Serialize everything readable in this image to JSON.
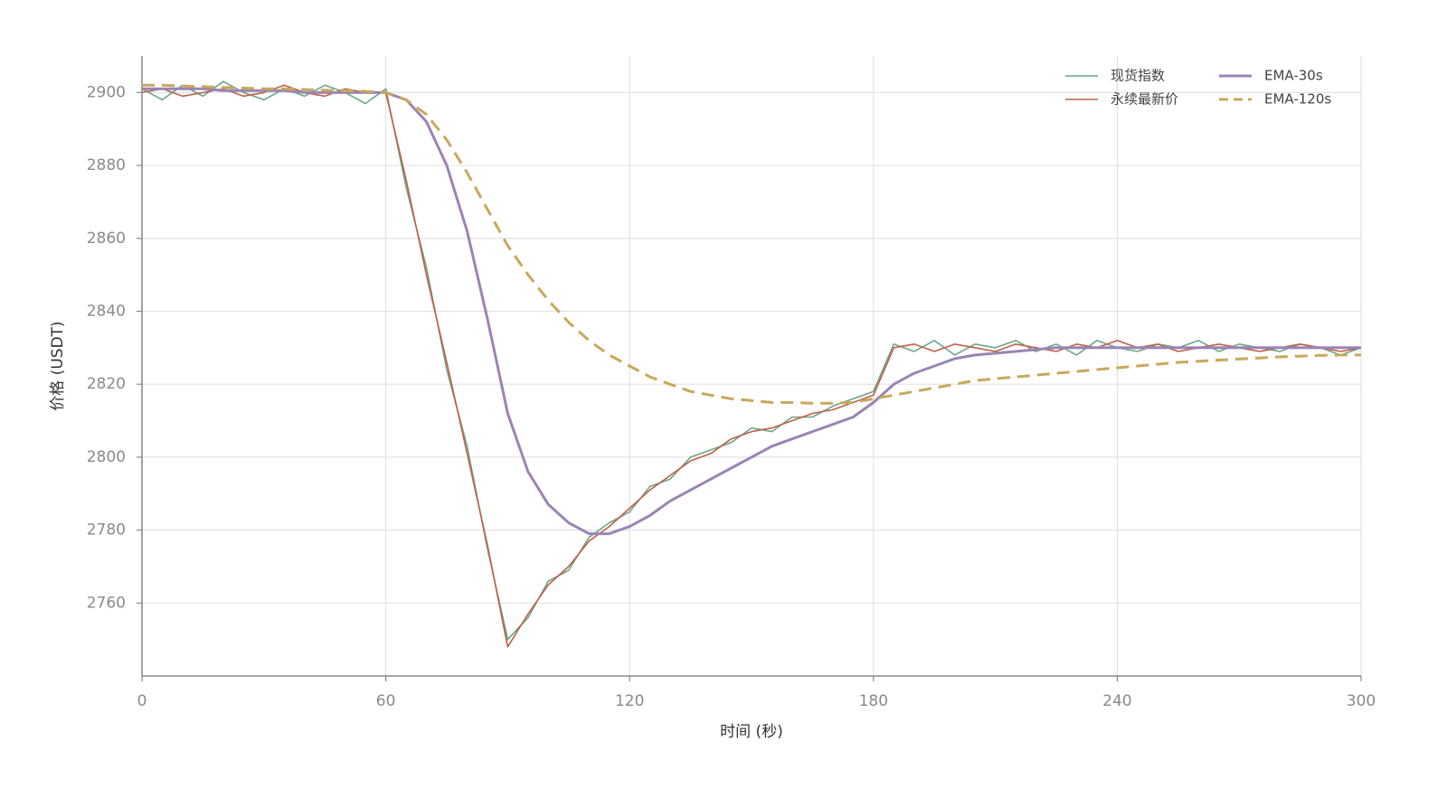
{
  "chart_data": {
    "type": "line",
    "xlabel": "时间 (秒)",
    "ylabel": "价格 (USDT)",
    "x": [
      0,
      5,
      10,
      15,
      20,
      25,
      30,
      35,
      40,
      45,
      50,
      55,
      60,
      65,
      70,
      75,
      80,
      85,
      90,
      95,
      100,
      105,
      110,
      115,
      120,
      125,
      130,
      135,
      140,
      145,
      150,
      155,
      160,
      165,
      170,
      175,
      180,
      185,
      190,
      195,
      200,
      205,
      210,
      215,
      220,
      225,
      230,
      235,
      240,
      245,
      250,
      255,
      260,
      265,
      270,
      275,
      280,
      285,
      290,
      295,
      300
    ],
    "series": [
      {
        "name": "现货指数",
        "color": "#6aa786",
        "linestyle": "solid",
        "linewidth": 1.6,
        "values": [
          2901,
          2898,
          2902,
          2899,
          2903,
          2900,
          2898,
          2901,
          2899,
          2902,
          2900,
          2897,
          2901,
          2874,
          2852,
          2824,
          2803,
          2775,
          2750,
          2756,
          2766,
          2769,
          2778,
          2782,
          2785,
          2792,
          2794,
          2800,
          2802,
          2804,
          2808,
          2807,
          2811,
          2811,
          2814,
          2816,
          2818,
          2831,
          2829,
          2832,
          2828,
          2831,
          2830,
          2832,
          2829,
          2831,
          2828,
          2832,
          2830,
          2829,
          2831,
          2830,
          2832,
          2829,
          2831,
          2830,
          2829,
          2831,
          2830,
          2828,
          2830
        ]
      },
      {
        "name": "永续最新价",
        "color": "#c0604a",
        "linestyle": "solid",
        "linewidth": 1.6,
        "values": [
          2900,
          2901,
          2899,
          2900,
          2901,
          2899,
          2900,
          2902,
          2900,
          2899,
          2901,
          2900,
          2900,
          2876,
          2850,
          2826,
          2801,
          2776,
          2748,
          2757,
          2765,
          2770,
          2777,
          2781,
          2786,
          2791,
          2795,
          2799,
          2801,
          2805,
          2807,
          2808,
          2810,
          2812,
          2813,
          2815,
          2817,
          2830,
          2831,
          2829,
          2831,
          2830,
          2829,
          2831,
          2830,
          2829,
          2831,
          2830,
          2832,
          2830,
          2831,
          2829,
          2830,
          2831,
          2830,
          2829,
          2830,
          2831,
          2830,
          2829,
          2830
        ]
      },
      {
        "name": "EMA-30s",
        "color": "#9b84b5",
        "linestyle": "solid",
        "linewidth": 3,
        "values": [
          2901,
          2901,
          2901,
          2901,
          2900.5,
          2900.5,
          2900.5,
          2900.5,
          2900,
          2900,
          2900,
          2900,
          2900,
          2898,
          2892,
          2880,
          2862,
          2838,
          2812,
          2796,
          2787,
          2782,
          2779,
          2779,
          2781,
          2784,
          2788,
          2791,
          2794,
          2797,
          2800,
          2803,
          2805,
          2807,
          2809,
          2811,
          2815,
          2820,
          2823,
          2825,
          2827,
          2828,
          2828.5,
          2829,
          2829.5,
          2830,
          2830,
          2830,
          2830,
          2830,
          2830,
          2830,
          2830,
          2830,
          2830,
          2830,
          2830,
          2830,
          2830,
          2830,
          2830
        ]
      },
      {
        "name": "EMA-120s",
        "color": "#c9a85a",
        "linestyle": "dashed",
        "linewidth": 3,
        "values": [
          2902,
          2902,
          2901.8,
          2901.6,
          2901.4,
          2901.2,
          2901,
          2901,
          2900.8,
          2900.6,
          2900.5,
          2900.3,
          2900,
          2898,
          2894,
          2887,
          2878,
          2868,
          2858,
          2850,
          2843,
          2837,
          2832,
          2828,
          2825,
          2822,
          2820,
          2818,
          2817,
          2816,
          2815.5,
          2815,
          2815,
          2814.8,
          2814.8,
          2815,
          2816,
          2817,
          2818,
          2819,
          2820,
          2821,
          2821.5,
          2822,
          2822.5,
          2823,
          2823.5,
          2824,
          2824.5,
          2825,
          2825.5,
          2826,
          2826.3,
          2826.6,
          2826.9,
          2827.2,
          2827.5,
          2827.7,
          2827.9,
          2828,
          2828
        ]
      }
    ],
    "xlim": [
      0,
      300
    ],
    "ylim": [
      2740,
      2910
    ],
    "xticks": [
      0,
      60,
      120,
      180,
      240,
      300
    ],
    "yticks": [
      2760,
      2780,
      2800,
      2820,
      2840,
      2860,
      2880,
      2900
    ],
    "grid": true,
    "legend": "upper right",
    "legend_columns": 2
  }
}
